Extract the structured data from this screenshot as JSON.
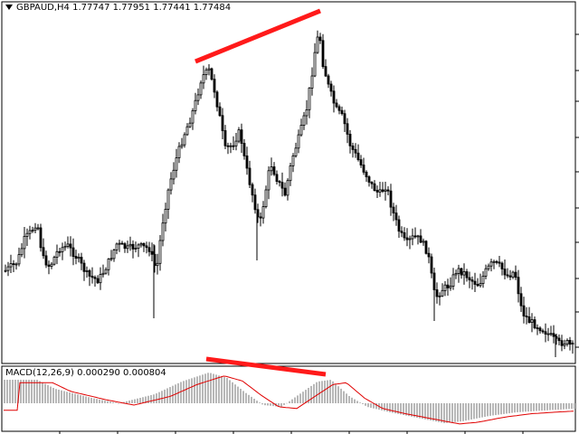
{
  "chart": {
    "symbol": "GBPAUD,H4",
    "open": "1.77747",
    "high": "1.77951",
    "low": "1.77441",
    "close": "1.77484",
    "colors": {
      "background": "#ffffff",
      "frame": "#000000",
      "candle": "#000000",
      "trendline": "#ff1a1a",
      "signal_line": "#e00000",
      "histogram": "#b8b8b8"
    }
  },
  "indicator": {
    "name": "MACD(12,26,9)",
    "values": [
      "0.000290",
      "0.000804"
    ]
  },
  "icons": {
    "menu": "dropdown-triangle-icon"
  }
}
